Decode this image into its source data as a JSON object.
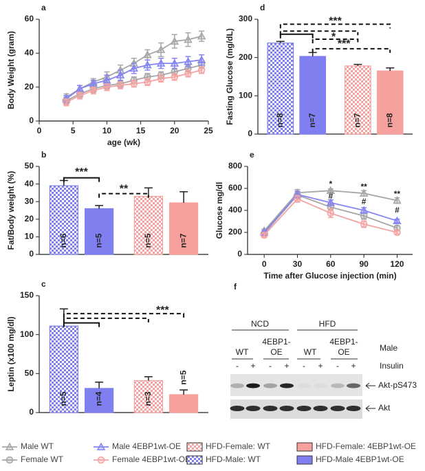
{
  "chart_data": [
    {
      "type": "line",
      "panel": "a",
      "x": [
        4,
        6,
        8,
        10,
        12,
        14,
        16,
        18,
        20,
        22,
        24
      ],
      "xlim": [
        0,
        25
      ],
      "xticks": [
        0,
        5,
        10,
        15,
        20,
        25
      ],
      "ylim": [
        0,
        60
      ],
      "yticks": [
        0,
        20,
        40,
        60
      ],
      "xlabel": "age (wk)",
      "ylabel": "Body Weight (gram)",
      "series": [
        {
          "color": "#a6a6a6",
          "marker": "triangle",
          "values": [
            14,
            19,
            23,
            26,
            30,
            34,
            39,
            42,
            47,
            48,
            50
          ],
          "errors": [
            2,
            2,
            2,
            3,
            3,
            3,
            3,
            4,
            4,
            4,
            3
          ]
        },
        {
          "color": "#a6a6a6",
          "marker": "circle",
          "values": [
            12,
            16,
            19,
            21,
            22,
            24,
            26,
            27,
            29,
            31,
            33
          ],
          "errors": [
            2,
            2,
            2,
            2,
            2,
            2,
            2,
            2,
            2,
            2,
            2
          ]
        },
        {
          "color": "#8585f2",
          "marker": "triangle",
          "values": [
            13,
            19,
            22,
            24,
            27,
            31,
            33,
            34,
            34,
            35,
            36
          ],
          "errors": [
            2,
            2,
            2,
            3,
            3,
            3,
            3,
            3,
            3,
            3,
            3
          ]
        },
        {
          "color": "#f4a3a3",
          "marker": "circle",
          "values": [
            11,
            15,
            18,
            20,
            21,
            22,
            23,
            25,
            26,
            28,
            30
          ],
          "errors": [
            2,
            2,
            2,
            2,
            2,
            2,
            2,
            2,
            2,
            2,
            2
          ]
        }
      ]
    },
    {
      "type": "bar",
      "panel": "b",
      "values": [
        39,
        26,
        33,
        29.3
      ],
      "errors": [
        3,
        1.8,
        4.8,
        6.3
      ],
      "colors": [
        "#7f7ff0",
        "#7f7ff0",
        "#f6a19d",
        "#f6a19d"
      ],
      "checkered": [
        true,
        false,
        true,
        false
      ],
      "n_labels": [
        "n=6",
        "n=5",
        "n=5",
        "n=7"
      ],
      "ylim": [
        0,
        50
      ],
      "yticks": [
        0,
        10,
        20,
        30,
        40,
        50
      ],
      "ylabel": "Fat/Body weight (%)",
      "annotations": [
        "***",
        "**"
      ]
    },
    {
      "type": "bar",
      "panel": "c",
      "values": [
        111,
        31,
        41,
        23
      ],
      "errors": [
        22,
        8,
        5,
        6
      ],
      "colors": [
        "#7f7ff0",
        "#7f7ff0",
        "#f6a19d",
        "#f6a19d"
      ],
      "checkered": [
        true,
        false,
        true,
        false
      ],
      "n_labels": [
        "n=5",
        "n=4",
        "n=3",
        "n=5"
      ],
      "ylim": [
        0,
        150
      ],
      "yticks": [
        0,
        50,
        100,
        150
      ],
      "ylabel": "Leptin (x100 mg/dl)",
      "annotations": [
        "***"
      ]
    },
    {
      "type": "bar",
      "panel": "d",
      "values": [
        238,
        203,
        178,
        165
      ],
      "errors": [
        4,
        10,
        4,
        8
      ],
      "colors": [
        "#7f7ff0",
        "#7f7ff0",
        "#f6a19d",
        "#f6a19d"
      ],
      "checkered": [
        true,
        false,
        true,
        false
      ],
      "n_labels": [
        "n=8",
        "n=7",
        "n=7",
        "n=8"
      ],
      "ylim": [
        0,
        300
      ],
      "yticks": [
        0,
        100,
        200,
        300
      ],
      "ylabel": "Fasting Glucose (mg/dL)",
      "annotations": [
        "***",
        "*",
        "***"
      ]
    },
    {
      "type": "line",
      "panel": "e",
      "x": [
        0,
        30,
        60,
        90,
        120
      ],
      "xlim": [
        -15,
        134
      ],
      "xticks": [
        0,
        30,
        60,
        90,
        120
      ],
      "ylim": [
        0,
        800
      ],
      "yticks": [
        0,
        200,
        400,
        600,
        800
      ],
      "xlabel": "Time after Glucose injection (min)",
      "ylabel": "Glucose mg/dl",
      "annotations": [
        "*",
        "**",
        "**",
        "#",
        "#",
        "#"
      ],
      "series": [
        {
          "color": "#a6a6a6",
          "marker": "triangle",
          "values": [
            215,
            560,
            580,
            555,
            490
          ],
          "errors": [
            15,
            30,
            15,
            25,
            25
          ]
        },
        {
          "color": "#a6a6a6",
          "marker": "circle",
          "values": [
            190,
            540,
            430,
            350,
            240
          ],
          "errors": [
            15,
            30,
            30,
            30,
            20
          ]
        },
        {
          "color": "#8585f2",
          "marker": "triangle",
          "values": [
            200,
            545,
            470,
            400,
            305
          ],
          "errors": [
            15,
            30,
            25,
            25,
            15
          ]
        },
        {
          "color": "#f4a3a3",
          "marker": "circle",
          "values": [
            175,
            505,
            375,
            275,
            200
          ],
          "errors": [
            15,
            30,
            40,
            30,
            15
          ]
        }
      ]
    }
  ],
  "blot": {
    "panel": "f",
    "groups": [
      "NCD",
      "HFD"
    ],
    "genotypes": [
      "WT",
      "4EBP1-OE",
      "WT",
      "4EBP1-OE"
    ],
    "sex": "Male",
    "treatment": "Insulin",
    "treatment_signs": [
      "-",
      "+",
      "-",
      "+",
      "-",
      "+",
      "-",
      "+"
    ],
    "bands": [
      "Akt-pS473",
      "Akt"
    ]
  },
  "legend": [
    {
      "name": "Male WT",
      "color": "#a6a6a6",
      "marker": "triangle"
    },
    {
      "name": "Female WT",
      "color": "#a6a6a6",
      "marker": "circle"
    },
    {
      "name": "Male 4EBP1wt-OE",
      "color": "#8585f2",
      "marker": "triangle"
    },
    {
      "name": "Female 4EBP1wt-OE",
      "color": "#f4a3a3",
      "marker": "circle"
    },
    {
      "name": "HFD-Female: WT",
      "color": "#f6a19d",
      "checkered": true
    },
    {
      "name": "HFD-Male: WT",
      "color": "#7f7ff0",
      "checkered": true
    },
    {
      "name": "HFD-Female: 4EBP1wt-OE",
      "color": "#f6a19d",
      "checkered": false
    },
    {
      "name": "HFD-Male 4EBP1wt-OE",
      "color": "#7f7ff0",
      "checkered": false
    }
  ]
}
